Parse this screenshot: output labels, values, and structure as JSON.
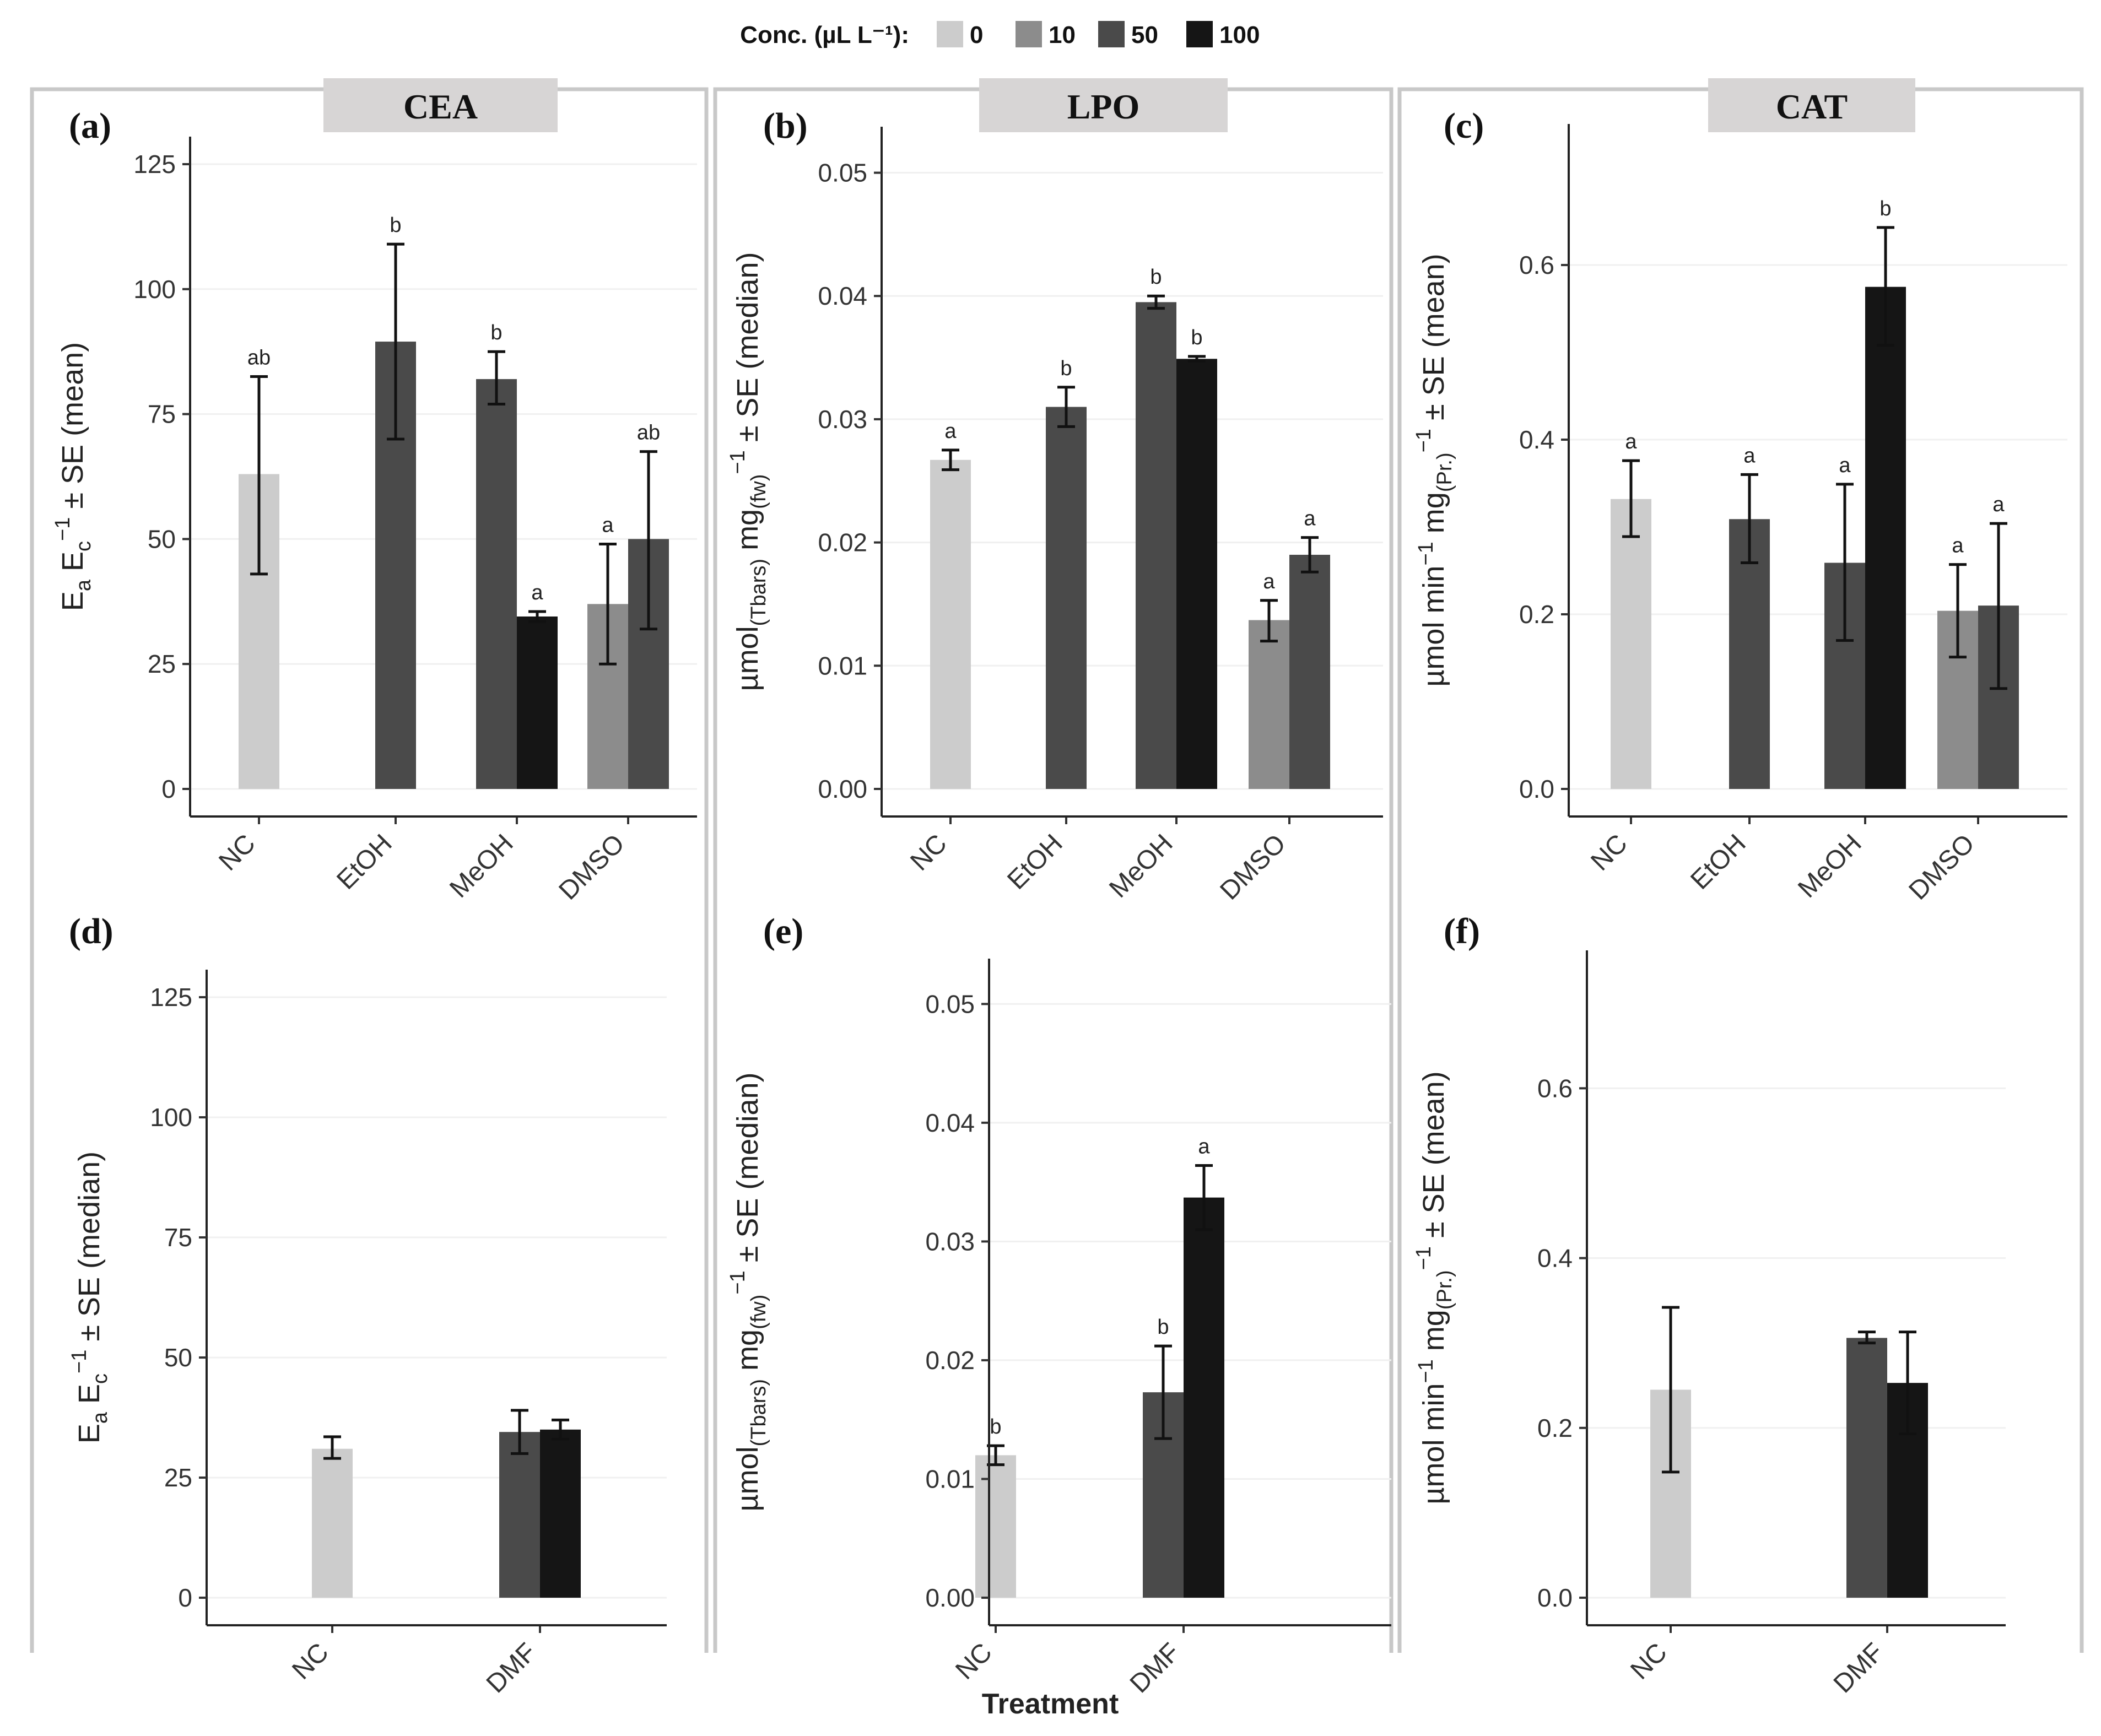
{
  "legend": {
    "title": "Conc. (µL L⁻¹):",
    "levels": [
      "0",
      "10",
      "50",
      "100"
    ],
    "colors": {
      "0": "#cccccc",
      "10": "#8c8c8c",
      "50": "#4a4a4a",
      "100": "#151515"
    }
  },
  "x_axis_title": "Treatment",
  "panel_titles": [
    "CEA",
    "LPO",
    "CAT"
  ],
  "chart_data": [
    {
      "panel": "(a)",
      "type": "bar",
      "title": "CEA",
      "ylabel": "Ea Ec^-1 ± SE (mean)",
      "ylabel_parts": {
        "main": "E",
        "sub1": "a",
        "mid": " E",
        "sub2": "c",
        "sup": "−1",
        "tail": " ± SE (mean)"
      },
      "ylim": [
        0,
        125
      ],
      "yticks": [
        0,
        25,
        50,
        75,
        100,
        125
      ],
      "categories": [
        "NC",
        "EtOH",
        "MeOH",
        "DMSO"
      ],
      "bars": [
        {
          "category": "NC",
          "conc": "0",
          "value": 63,
          "se_low": 43,
          "se_high": 82.5,
          "label": "ab"
        },
        {
          "category": "EtOH",
          "conc": "50",
          "value": 89.5,
          "se_low": 70,
          "se_high": 109,
          "label": "b"
        },
        {
          "category": "MeOH",
          "conc": "50",
          "value": 82,
          "se_low": 77,
          "se_high": 87.5,
          "label": "b"
        },
        {
          "category": "MeOH",
          "conc": "100",
          "value": 34.5,
          "se_low": 33.5,
          "se_high": 35.5,
          "label": "a"
        },
        {
          "category": "DMSO",
          "conc": "10",
          "value": 37,
          "se_low": 25,
          "se_high": 49,
          "label": "a"
        },
        {
          "category": "DMSO",
          "conc": "50",
          "value": 50,
          "se_low": 32,
          "se_high": 67.5,
          "label": "ab"
        }
      ]
    },
    {
      "panel": "(b)",
      "type": "bar",
      "title": "LPO",
      "ylabel": "µmol(Tbars) mg(fw)^-1 ± SE (median)",
      "ylabel_parts": {
        "main": "µmol",
        "sub1": "(Tbars)",
        "mid": " mg",
        "sub2": "(fw)",
        "sup": "−1",
        "tail": " ± SE (median)"
      },
      "ylim": [
        0,
        0.0515
      ],
      "yticks": [
        0,
        0.01,
        0.02,
        0.03,
        0.04,
        0.05
      ],
      "tick_labels": [
        "0.00",
        "0.01",
        "0.02",
        "0.03",
        "0.04",
        "0.05"
      ],
      "categories": [
        "NC",
        "EtOH",
        "MeOH",
        "DMSO"
      ],
      "bars": [
        {
          "category": "NC",
          "conc": "0",
          "value": 0.0267,
          "se_low": 0.0259,
          "se_high": 0.0275,
          "label": "a"
        },
        {
          "category": "EtOH",
          "conc": "50",
          "value": 0.031,
          "se_low": 0.0294,
          "se_high": 0.0326,
          "label": "b"
        },
        {
          "category": "MeOH",
          "conc": "50",
          "value": 0.0395,
          "se_low": 0.039,
          "se_high": 0.04,
          "label": "b"
        },
        {
          "category": "MeOH",
          "conc": "100",
          "value": 0.0349,
          "se_low": 0.0347,
          "se_high": 0.0351,
          "label": "b"
        },
        {
          "category": "DMSO",
          "conc": "10",
          "value": 0.0137,
          "se_low": 0.012,
          "se_high": 0.0153,
          "label": "a"
        },
        {
          "category": "DMSO",
          "conc": "50",
          "value": 0.019,
          "se_low": 0.0176,
          "se_high": 0.0204,
          "label": "a"
        }
      ]
    },
    {
      "panel": "(c)",
      "type": "bar",
      "title": "CAT",
      "ylabel": "µmol min^-1 mg(Pr.)^-1 ± SE (mean)",
      "ylabel_parts": {
        "main": "µmol min",
        "sub1": "",
        "supA": "−1",
        "mid": " mg",
        "sub2": "(Pr.)",
        "sup": "−1",
        "tail": " ± SE (mean)"
      },
      "ylim": [
        0,
        0.73
      ],
      "yticks": [
        0,
        0.2,
        0.4,
        0.6
      ],
      "tick_labels": [
        "0.0",
        "0.2",
        "0.4",
        "0.6"
      ],
      "categories": [
        "NC",
        "EtOH",
        "MeOH",
        "DMSO"
      ],
      "bars": [
        {
          "category": "NC",
          "conc": "0",
          "value": 0.332,
          "se_low": 0.289,
          "se_high": 0.376,
          "label": "a"
        },
        {
          "category": "EtOH",
          "conc": "50",
          "value": 0.309,
          "se_low": 0.259,
          "se_high": 0.36,
          "label": "a"
        },
        {
          "category": "MeOH",
          "conc": "50",
          "value": 0.259,
          "se_low": 0.17,
          "se_high": 0.349,
          "label": "a"
        },
        {
          "category": "MeOH",
          "conc": "100",
          "value": 0.575,
          "se_low": 0.508,
          "se_high": 0.643,
          "label": "b"
        },
        {
          "category": "DMSO",
          "conc": "10",
          "value": 0.204,
          "se_low": 0.151,
          "se_high": 0.257,
          "label": "a"
        },
        {
          "category": "DMSO",
          "conc": "50",
          "value": 0.21,
          "se_low": 0.115,
          "se_high": 0.304,
          "label": "a"
        }
      ]
    },
    {
      "panel": "(d)",
      "type": "bar",
      "title": "",
      "ylabel": "Ea Ec^-1 ± SE (median)",
      "ylabel_parts": {
        "main": "E",
        "sub1": "a",
        "mid": " E",
        "sub2": "c",
        "sup": "−1",
        "tail": " ± SE (median)"
      },
      "ylim": [
        0,
        125
      ],
      "yticks": [
        0,
        25,
        50,
        75,
        100,
        125
      ],
      "categories": [
        "NC",
        "DMF"
      ],
      "bars": [
        {
          "category": "NC",
          "conc": "0",
          "value": 31,
          "se_low": 29,
          "se_high": 33.5,
          "label": ""
        },
        {
          "category": "DMF",
          "conc": "50",
          "value": 34.5,
          "se_low": 30,
          "se_high": 39,
          "label": ""
        },
        {
          "category": "DMF",
          "conc": "100",
          "value": 35,
          "se_low": 33,
          "se_high": 37,
          "label": ""
        }
      ]
    },
    {
      "panel": "(e)",
      "type": "bar",
      "title": "",
      "ylabel": "µmol(Tbars) mg(fw)^-1 ± SE (median)",
      "ylabel_parts": {
        "main": "µmol",
        "sub1": "(Tbars)",
        "mid": " mg",
        "sub2": "(fw)",
        "sup": "−1",
        "tail": " ± SE (median)"
      },
      "ylim": [
        0,
        0.0515
      ],
      "yticks": [
        0,
        0.01,
        0.02,
        0.03,
        0.04,
        0.05
      ],
      "tick_labels": [
        "0.00",
        "0.01",
        "0.02",
        "0.03",
        "0.04",
        "0.05"
      ],
      "categories": [
        "NC",
        "DMF"
      ],
      "bars": [
        {
          "category": "NC",
          "conc": "0",
          "value": 0.012,
          "se_low": 0.0112,
          "se_high": 0.0128,
          "label": "b"
        },
        {
          "category": "DMF",
          "conc": "50",
          "value": 0.0173,
          "se_low": 0.0134,
          "se_high": 0.0212,
          "label": "b"
        },
        {
          "category": "DMF",
          "conc": "100",
          "value": 0.0337,
          "se_low": 0.031,
          "se_high": 0.0364,
          "label": "a"
        }
      ]
    },
    {
      "panel": "(f)",
      "type": "bar",
      "title": "",
      "ylabel": "µmol min^-1 mg(Pr.)^-1 ± SE (mean)",
      "ylabel_parts": {
        "main": "µmol min",
        "sub1": "",
        "supA": "−1",
        "mid": " mg",
        "sub2": "(Pr.)",
        "sup": "−1",
        "tail": " ± SE (mean)"
      },
      "ylim": [
        0,
        0.73
      ],
      "yticks": [
        0,
        0.2,
        0.4,
        0.6
      ],
      "tick_labels": [
        "0.0",
        "0.2",
        "0.4",
        "0.6"
      ],
      "categories": [
        "NC",
        "DMF"
      ],
      "bars": [
        {
          "category": "NC",
          "conc": "0",
          "value": 0.245,
          "se_low": 0.148,
          "se_high": 0.342,
          "label": ""
        },
        {
          "category": "DMF",
          "conc": "50",
          "value": 0.306,
          "se_low": 0.3,
          "se_high": 0.313,
          "label": ""
        },
        {
          "category": "DMF",
          "conc": "100",
          "value": 0.253,
          "se_low": 0.193,
          "se_high": 0.313,
          "label": ""
        }
      ]
    }
  ]
}
